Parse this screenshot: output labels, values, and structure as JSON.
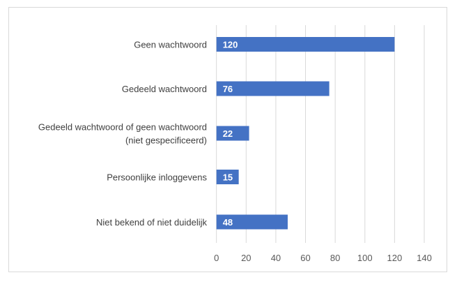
{
  "chart_data": {
    "type": "bar",
    "orientation": "horizontal",
    "title": "",
    "xlabel": "",
    "ylabel": "",
    "categories": [
      [
        "Geen wachtwoord"
      ],
      [
        "Gedeeld wachtwoord"
      ],
      [
        "Gedeeld wachtwoord of geen wachtwoord",
        "(niet gespecificeerd)"
      ],
      [
        "Persoonlijke inloggevens"
      ],
      [
        "Niet bekend of niet duidelijk"
      ]
    ],
    "values": [
      120,
      76,
      22,
      15,
      48
    ],
    "xlim": [
      0,
      140
    ],
    "xticks": [
      0,
      20,
      40,
      60,
      80,
      100,
      120,
      140
    ],
    "grid": true,
    "legend": "none",
    "bar_color": "#4472c4",
    "grid_color": "#d9d9d9"
  }
}
